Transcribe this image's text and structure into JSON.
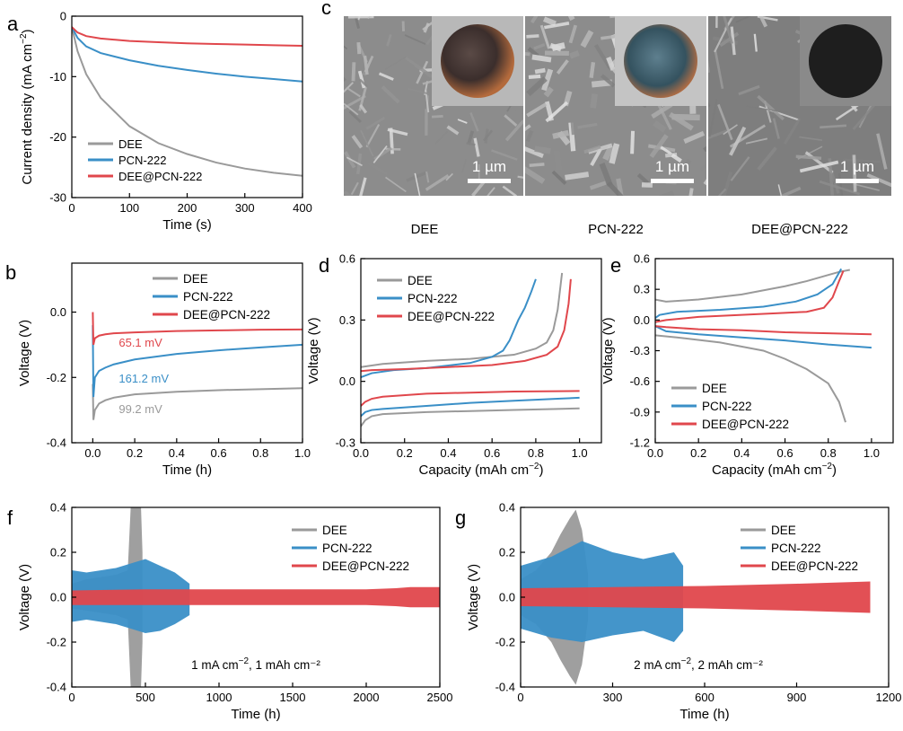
{
  "colors": {
    "DEE": "#9a9a9a",
    "PCN-222": "#3a8fc7",
    "DEE@PCN-222": "#e0474c",
    "axis": "#000000"
  },
  "legend_names": [
    "DEE",
    "PCN-222",
    "DEE@PCN-222"
  ],
  "panel_c": {
    "label": "c",
    "images": [
      {
        "caption": "DEE",
        "scale_bar": "1 µm",
        "inset": "copper-disc-partial"
      },
      {
        "caption": "PCN-222",
        "scale_bar": "1 µm",
        "inset": "copper-disc-dark-blue"
      },
      {
        "caption": "DEE@PCN-222",
        "scale_bar": "1 µm",
        "inset": "black-disc"
      }
    ]
  },
  "chart_data": [
    {
      "panel": "a",
      "type": "line",
      "xlabel": "Time (s)",
      "ylabel": "Current density (mA cm⁻²)",
      "xlim": [
        0,
        400
      ],
      "ylim": [
        -30,
        0
      ],
      "xticks": [
        0,
        100,
        200,
        300,
        400
      ],
      "yticks": [
        0,
        -10,
        -20,
        -30
      ],
      "legend": [
        "DEE",
        "PCN-222",
        "DEE@PCN-222"
      ],
      "series": [
        {
          "name": "DEE",
          "x": [
            0,
            10,
            25,
            50,
            100,
            150,
            200,
            250,
            300,
            350,
            400
          ],
          "y": [
            -1.8,
            -5.8,
            -9.6,
            -13.5,
            -18.2,
            -21.0,
            -22.8,
            -24.2,
            -25.2,
            -25.9,
            -26.4
          ]
        },
        {
          "name": "PCN-222",
          "x": [
            0,
            10,
            25,
            50,
            100,
            150,
            200,
            250,
            300,
            350,
            400
          ],
          "y": [
            -1.8,
            -3.6,
            -5.0,
            -6.1,
            -7.3,
            -8.2,
            -8.9,
            -9.5,
            -10.0,
            -10.4,
            -10.8
          ]
        },
        {
          "name": "DEE@PCN-222",
          "x": [
            0,
            10,
            25,
            50,
            100,
            150,
            200,
            250,
            300,
            350,
            400
          ],
          "y": [
            -1.8,
            -2.7,
            -3.3,
            -3.7,
            -4.1,
            -4.3,
            -4.5,
            -4.6,
            -4.7,
            -4.8,
            -4.9
          ]
        }
      ]
    },
    {
      "panel": "b",
      "type": "line",
      "xlabel": "Time (h)",
      "ylabel": "Voltage (V)",
      "xlim": [
        -0.1,
        1.0
      ],
      "ylim": [
        -0.4,
        0.15
      ],
      "xticks": [
        0.0,
        0.2,
        0.4,
        0.6,
        0.8,
        1.0
      ],
      "yticks": [
        0.0,
        -0.2,
        -0.4
      ],
      "legend": [
        "DEE",
        "PCN-222",
        "DEE@PCN-222"
      ],
      "annotations": [
        {
          "text": "65.1 mV",
          "series": "DEE@PCN-222",
          "x": 0.03,
          "y": -0.095
        },
        {
          "text": "161.2 mV",
          "series": "PCN-222",
          "x": 0.03,
          "y": -0.205
        },
        {
          "text": "99.2 mV",
          "series": "DEE",
          "x": 0.03,
          "y": -0.298
        }
      ],
      "series": [
        {
          "name": "DEE",
          "x": [
            0.0,
            0.003,
            0.01,
            0.03,
            0.06,
            0.1,
            0.2,
            0.4,
            0.6,
            0.8,
            1.0
          ],
          "y": [
            -0.22,
            -0.33,
            -0.3,
            -0.28,
            -0.27,
            -0.262,
            -0.252,
            -0.244,
            -0.239,
            -0.236,
            -0.233
          ]
        },
        {
          "name": "PCN-222",
          "x": [
            0.0,
            0.003,
            0.01,
            0.03,
            0.06,
            0.1,
            0.2,
            0.4,
            0.6,
            0.8,
            1.0
          ],
          "y": [
            -0.04,
            -0.26,
            -0.2,
            -0.18,
            -0.17,
            -0.16,
            -0.145,
            -0.128,
            -0.117,
            -0.108,
            -0.1
          ]
        },
        {
          "name": "DEE@PCN-222",
          "x": [
            0.0,
            0.003,
            0.01,
            0.03,
            0.06,
            0.1,
            0.2,
            0.4,
            0.6,
            0.8,
            1.0
          ],
          "y": [
            0.0,
            -0.1,
            -0.08,
            -0.072,
            -0.068,
            -0.065,
            -0.062,
            -0.058,
            -0.056,
            -0.054,
            -0.053
          ]
        }
      ]
    },
    {
      "panel": "d",
      "type": "line",
      "xlabel": "Capacity (mAh cm⁻²)",
      "ylabel": "Voltage (V)",
      "xlim": [
        0,
        1.1
      ],
      "ylim": [
        -0.3,
        0.6
      ],
      "xticks": [
        0.0,
        0.2,
        0.4,
        0.6,
        0.8,
        1.0
      ],
      "yticks": [
        0.6,
        0.3,
        0.0,
        -0.3
      ],
      "legend": [
        "DEE",
        "PCN-222",
        "DEE@PCN-222"
      ],
      "series": [
        {
          "name": "DEE",
          "x": [
            0.0,
            0.1,
            0.3,
            0.5,
            0.7,
            0.8,
            0.85,
            0.88,
            0.9,
            0.92,
            0.0,
            0.02,
            0.05,
            0.1,
            0.3,
            0.5,
            0.7,
            0.9,
            1.0
          ],
          "y": [
            0.07,
            0.085,
            0.1,
            0.11,
            0.13,
            0.16,
            0.19,
            0.25,
            0.35,
            0.53,
            -0.22,
            -0.19,
            -0.17,
            -0.16,
            -0.15,
            -0.145,
            -0.14,
            -0.135,
            -0.132
          ],
          "break_at": 10
        },
        {
          "name": "PCN-222",
          "x": [
            0.0,
            0.05,
            0.15,
            0.3,
            0.5,
            0.6,
            0.65,
            0.68,
            0.7,
            0.72,
            0.75,
            0.78,
            0.8,
            0.0,
            0.02,
            0.05,
            0.1,
            0.3,
            0.5,
            0.7,
            0.9,
            1.0
          ],
          "y": [
            0.02,
            0.04,
            0.055,
            0.065,
            0.09,
            0.12,
            0.15,
            0.2,
            0.25,
            0.3,
            0.36,
            0.44,
            0.5,
            -0.17,
            -0.15,
            -0.14,
            -0.135,
            -0.12,
            -0.105,
            -0.095,
            -0.085,
            -0.08
          ],
          "break_at": 13
        },
        {
          "name": "DEE@PCN-222",
          "x": [
            0.0,
            0.05,
            0.2,
            0.4,
            0.6,
            0.75,
            0.85,
            0.9,
            0.93,
            0.95,
            0.96,
            0.0,
            0.02,
            0.05,
            0.1,
            0.3,
            0.5,
            0.7,
            0.9,
            1.0
          ],
          "y": [
            0.05,
            0.055,
            0.06,
            0.07,
            0.08,
            0.1,
            0.13,
            0.17,
            0.25,
            0.38,
            0.5,
            -0.12,
            -0.1,
            -0.085,
            -0.075,
            -0.06,
            -0.055,
            -0.05,
            -0.048,
            -0.047
          ],
          "break_at": 11
        }
      ]
    },
    {
      "panel": "e",
      "type": "line",
      "xlabel": "Capacity (mAh cm⁻²)",
      "ylabel": "Voltage (V)",
      "xlim": [
        0,
        1.1
      ],
      "ylim": [
        -1.2,
        0.6
      ],
      "xticks": [
        0.0,
        0.2,
        0.4,
        0.6,
        0.8,
        1.0
      ],
      "yticks": [
        0.6,
        0.3,
        0.0,
        -0.3,
        -0.6,
        -0.9,
        -1.2
      ],
      "legend": [
        "DEE",
        "PCN-222",
        "DEE@PCN-222"
      ],
      "series": [
        {
          "name": "DEE",
          "x": [
            0.0,
            0.05,
            0.2,
            0.4,
            0.6,
            0.7,
            0.8,
            0.85,
            0.9,
            0.0,
            0.1,
            0.3,
            0.5,
            0.6,
            0.7,
            0.8,
            0.85,
            0.88
          ],
          "y": [
            0.2,
            0.18,
            0.2,
            0.25,
            0.33,
            0.38,
            0.44,
            0.47,
            0.49,
            -0.15,
            -0.17,
            -0.22,
            -0.3,
            -0.38,
            -0.48,
            -0.62,
            -0.8,
            -1.0
          ],
          "break_at": 9
        },
        {
          "name": "PCN-222",
          "x": [
            0.0,
            0.02,
            0.1,
            0.3,
            0.5,
            0.65,
            0.75,
            0.82,
            0.86,
            0.0,
            0.05,
            0.2,
            0.4,
            0.6,
            0.8,
            1.0
          ],
          "y": [
            0.02,
            0.05,
            0.08,
            0.1,
            0.13,
            0.18,
            0.25,
            0.35,
            0.5,
            -0.06,
            -0.11,
            -0.14,
            -0.17,
            -0.2,
            -0.24,
            -0.27
          ],
          "break_at": 9
        },
        {
          "name": "DEE@PCN-222",
          "x": [
            0.0,
            0.05,
            0.2,
            0.4,
            0.6,
            0.7,
            0.78,
            0.82,
            0.85,
            0.87,
            0.0,
            0.05,
            0.2,
            0.4,
            0.6,
            0.8,
            1.0
          ],
          "y": [
            -0.02,
            0.0,
            0.03,
            0.05,
            0.07,
            0.08,
            0.12,
            0.22,
            0.38,
            0.48,
            -0.06,
            -0.07,
            -0.09,
            -0.1,
            -0.12,
            -0.13,
            -0.14
          ],
          "break_at": 10
        }
      ]
    },
    {
      "panel": "f",
      "type": "area",
      "xlabel": "Time (h)",
      "ylabel": "Voltage (V)",
      "xlim": [
        0,
        2500
      ],
      "ylim": [
        -0.4,
        0.4
      ],
      "xticks": [
        0,
        500,
        1000,
        1500,
        2000,
        2500
      ],
      "yticks": [
        0.4,
        0.2,
        0.0,
        -0.2,
        -0.4
      ],
      "legend": [
        "DEE",
        "PCN-222",
        "DEE@PCN-222"
      ],
      "condition_text": "1 mA cm⁻², 1 mAh cm⁻²",
      "series": [
        {
          "name": "DEE",
          "x": [
            0,
            100,
            200,
            300,
            380,
            400,
            450,
            470,
            480
          ],
          "upper": [
            0.06,
            0.08,
            0.09,
            0.1,
            0.12,
            0.4,
            0.4,
            0.4,
            0.2
          ],
          "lower": [
            -0.05,
            -0.06,
            -0.07,
            -0.08,
            -0.1,
            -0.4,
            -0.4,
            -0.4,
            -0.2
          ]
        },
        {
          "name": "PCN-222",
          "x": [
            0,
            100,
            200,
            300,
            400,
            500,
            600,
            700,
            800
          ],
          "upper": [
            0.12,
            0.11,
            0.12,
            0.13,
            0.15,
            0.17,
            0.14,
            0.11,
            0.06
          ],
          "lower": [
            -0.11,
            -0.1,
            -0.11,
            -0.12,
            -0.14,
            -0.16,
            -0.15,
            -0.12,
            -0.08
          ]
        },
        {
          "name": "DEE@PCN-222",
          "x": [
            0,
            500,
            1000,
            1500,
            2000,
            2200,
            2300,
            2500
          ],
          "upper": [
            0.03,
            0.035,
            0.035,
            0.035,
            0.035,
            0.04,
            0.045,
            0.045
          ],
          "lower": [
            -0.035,
            -0.035,
            -0.035,
            -0.035,
            -0.035,
            -0.04,
            -0.045,
            -0.045
          ]
        }
      ]
    },
    {
      "panel": "g",
      "type": "area",
      "xlabel": "Time (h)",
      "ylabel": "Voltage (V)",
      "xlim": [
        0,
        1200
      ],
      "ylim": [
        -0.4,
        0.4
      ],
      "xticks": [
        0,
        300,
        600,
        900,
        1200
      ],
      "yticks": [
        0.4,
        0.2,
        0.0,
        -0.2,
        -0.4
      ],
      "legend": [
        "DEE",
        "PCN-222",
        "DEE@PCN-222"
      ],
      "condition_text": "2 mA cm⁻², 2 mAh cm⁻²",
      "series": [
        {
          "name": "DEE",
          "x": [
            0,
            50,
            100,
            130,
            160,
            180,
            200,
            220
          ],
          "upper": [
            0.08,
            0.12,
            0.2,
            0.28,
            0.35,
            0.39,
            0.3,
            0.1
          ],
          "lower": [
            -0.08,
            -0.12,
            -0.2,
            -0.28,
            -0.35,
            -0.39,
            -0.3,
            -0.1
          ]
        },
        {
          "name": "PCN-222",
          "x": [
            0,
            100,
            200,
            300,
            400,
            500,
            530
          ],
          "upper": [
            0.14,
            0.18,
            0.25,
            0.2,
            0.17,
            0.2,
            0.14
          ],
          "lower": [
            -0.14,
            -0.18,
            -0.2,
            -0.17,
            -0.15,
            -0.2,
            -0.15
          ]
        },
        {
          "name": "DEE@PCN-222",
          "x": [
            0,
            300,
            600,
            900,
            1140
          ],
          "upper": [
            0.04,
            0.045,
            0.05,
            0.06,
            0.07
          ],
          "lower": [
            -0.04,
            -0.045,
            -0.05,
            -0.06,
            -0.07
          ]
        }
      ]
    }
  ]
}
